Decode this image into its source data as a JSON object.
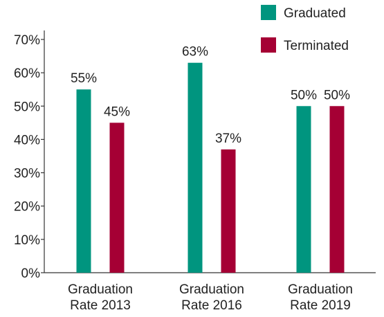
{
  "chart_data": {
    "type": "bar",
    "categories": [
      [
        "Graduation",
        "Rate 2013"
      ],
      [
        "Graduation",
        "Rate 2016"
      ],
      [
        "Graduation",
        "Rate 2019"
      ]
    ],
    "series": [
      {
        "name": "Graduated",
        "values": [
          55,
          63,
          50
        ],
        "labels": [
          "55%",
          "63%",
          "50%"
        ],
        "color": "#00957f"
      },
      {
        "name": "Terminated",
        "values": [
          45,
          37,
          50
        ],
        "labels": [
          "45%",
          "37%",
          "50%"
        ],
        "color": "#a50034"
      }
    ],
    "y_ticks": [
      0,
      10,
      20,
      30,
      40,
      50,
      60,
      70
    ],
    "y_tick_labels": [
      "0%",
      "10%",
      "20%",
      "30%",
      "40%",
      "50%",
      "60%",
      "70%"
    ],
    "ylim": [
      0,
      70
    ],
    "title": "",
    "xlabel": "",
    "ylabel": "",
    "grid": false,
    "legend_position": "top-right"
  }
}
